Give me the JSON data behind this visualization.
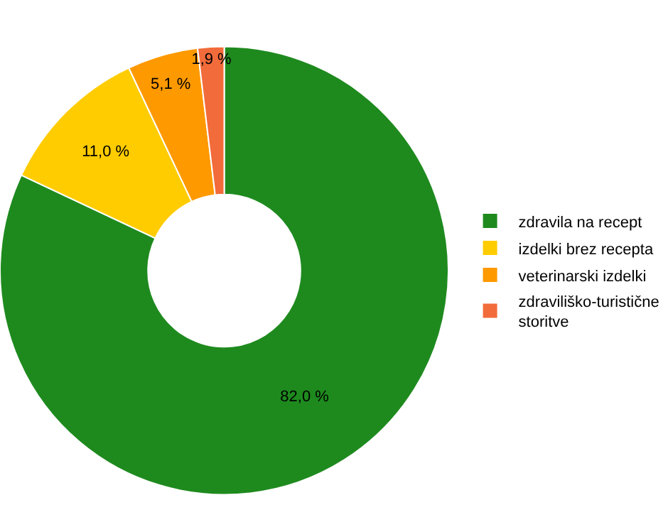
{
  "chart_data": {
    "type": "donut",
    "categories": [
      "zdravila na recept",
      "izdelki brez recepta",
      "veterinarski izdelki",
      "zdraviliško-turistične storitve"
    ],
    "values": [
      82.0,
      11.0,
      5.1,
      1.9
    ],
    "value_labels": [
      "82,0 %",
      "11,0 %",
      "5,1 %",
      "1,9 %"
    ],
    "colors": [
      "#1e8a1e",
      "#ffcc00",
      "#ff9900",
      "#f26b3a"
    ],
    "legend": "right"
  }
}
